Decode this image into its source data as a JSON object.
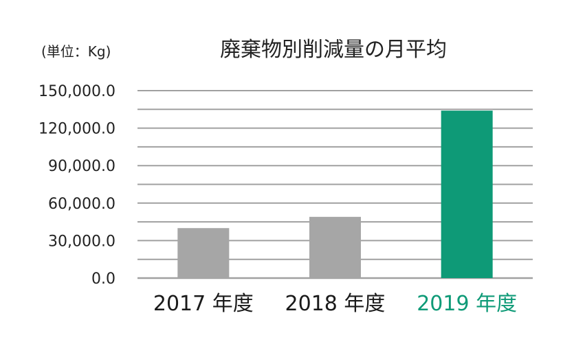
{
  "chart_data": {
    "type": "bar",
    "title": "廃棄物別削減量の月平均",
    "unit_label": "(単位：Kg)",
    "categories": [
      "2017 年度",
      "2018 年度",
      "2019 年度"
    ],
    "values": [
      40000,
      49000,
      134000
    ],
    "ylim": [
      0,
      150000
    ],
    "ytick_values": [
      0,
      30000,
      60000,
      90000,
      120000,
      150000
    ],
    "ytick_labels": [
      "0.0",
      "30,000.0",
      "60,000.0",
      "90,000.0",
      "120,000.0",
      "150,000.0"
    ],
    "minor_step": 15000,
    "grid": true,
    "colors": {
      "default_bar": "#a6a6a6",
      "highlight_bar": "#0e9a77",
      "default_label": "#1a1a1a",
      "highlight_label": "#0e9a77",
      "grid": "#a0a0a0"
    },
    "highlight_index": 2
  }
}
